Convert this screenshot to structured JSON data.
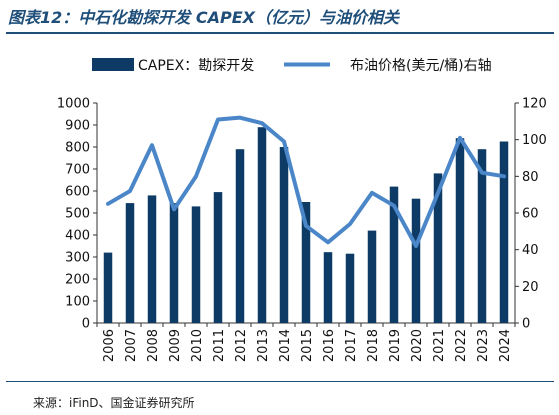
{
  "header": {
    "title": "图表12：中石化勘探开发 CAPEX（亿元）与油价相关"
  },
  "footer": {
    "source": "来源：iFinD、国金证券研究所"
  },
  "colors": {
    "bar": "#0d3b66",
    "line": "#4a86c8",
    "title": "#1f4e79",
    "axis": "#333333"
  },
  "chart_data": {
    "type": "bar",
    "categories": [
      "2006",
      "2007",
      "2008",
      "2009",
      "2010",
      "2011",
      "2012",
      "2013",
      "2014",
      "2015",
      "2016",
      "2017",
      "2018",
      "2019",
      "2020",
      "2021",
      "2022",
      "2023",
      "2024"
    ],
    "series": [
      {
        "name": "CAPEX：勘探开发",
        "type": "bar",
        "axis": "left",
        "values": [
          320,
          545,
          580,
          545,
          530,
          595,
          790,
          890,
          800,
          550,
          322,
          315,
          420,
          620,
          565,
          680,
          840,
          790,
          825
        ]
      },
      {
        "name": "布油价格(美元/桶)右轴",
        "type": "line",
        "axis": "right",
        "values": [
          65,
          72,
          97,
          62,
          80,
          111,
          112,
          109,
          99,
          53,
          44,
          54,
          71,
          64,
          42,
          71,
          101,
          82,
          80
        ]
      }
    ],
    "ylim": [
      0,
      1000
    ],
    "yticks": [
      "0",
      "100",
      "200",
      "300",
      "400",
      "500",
      "600",
      "700",
      "800",
      "900",
      "1000"
    ],
    "y2lim": [
      0,
      120
    ],
    "y2ticks": [
      "0",
      "20",
      "40",
      "60",
      "80",
      "100",
      "120"
    ],
    "legend": "top",
    "grid": false
  }
}
